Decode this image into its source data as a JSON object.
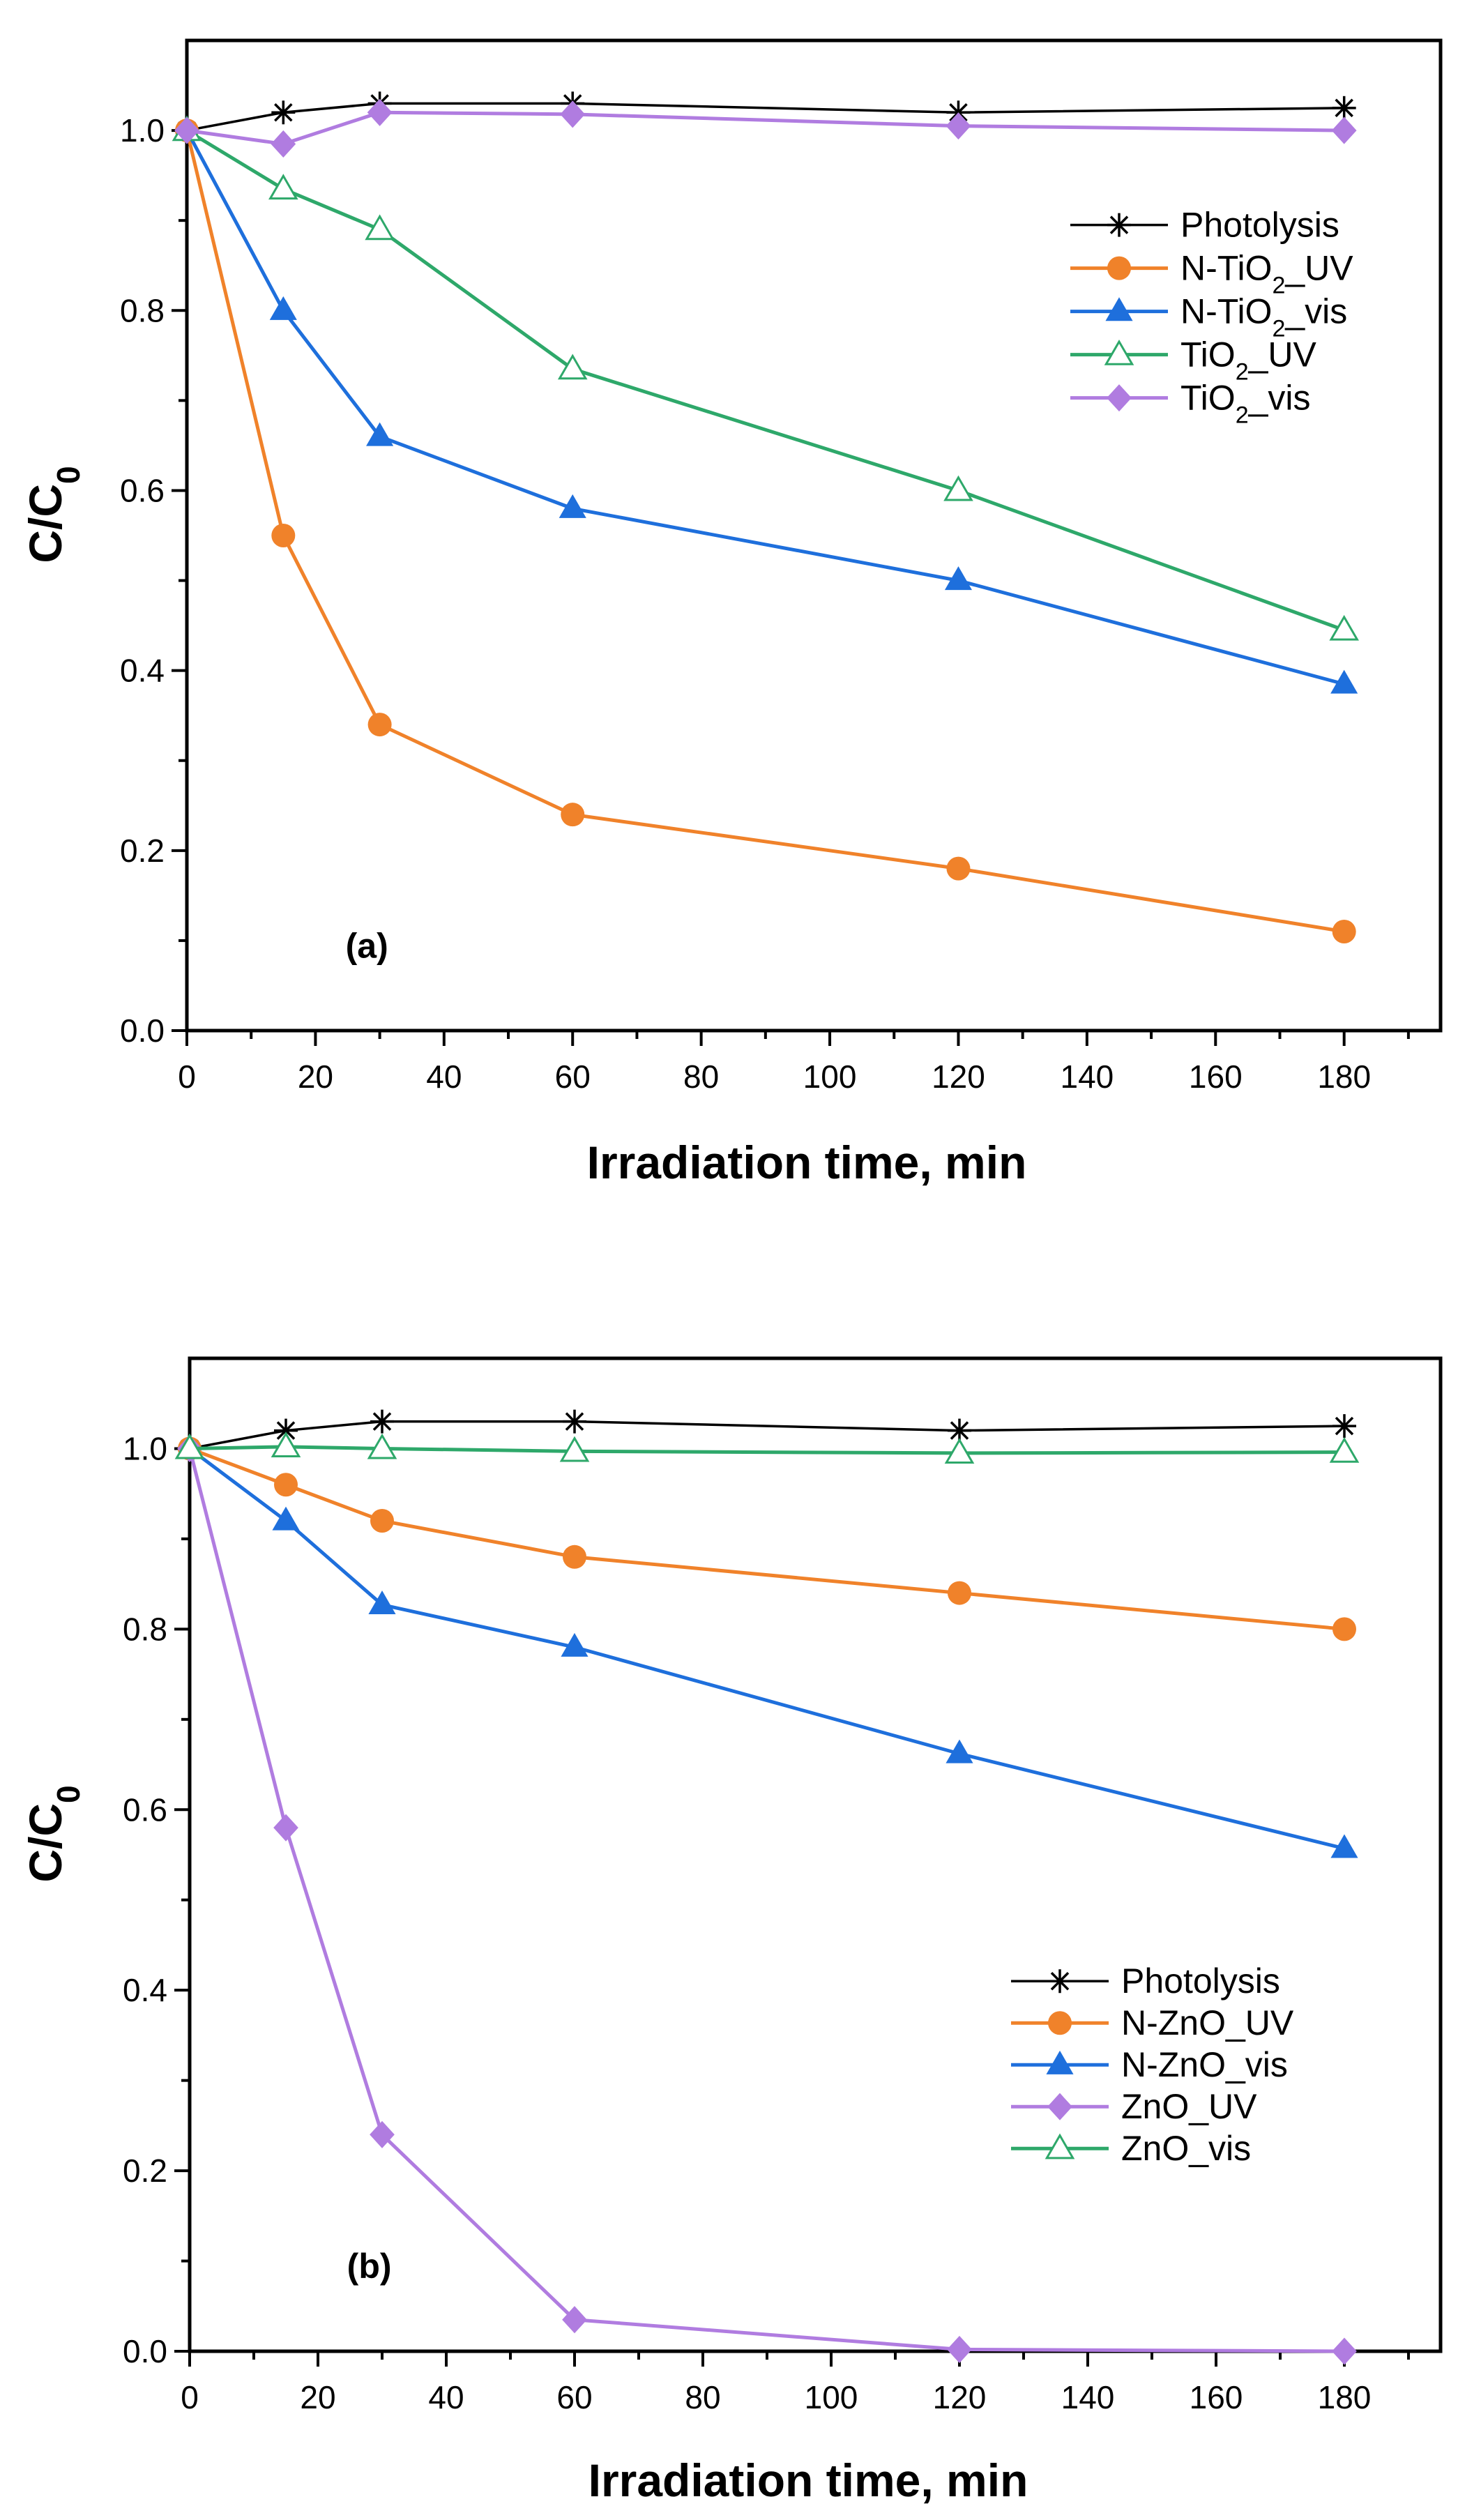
{
  "chart_data": [
    {
      "type": "line",
      "panel_label": "(a)",
      "xlabel": "Irradiation time, min",
      "ylabel": "C/C0",
      "xlim": [
        0,
        195
      ],
      "ylim": [
        0,
        1.1
      ],
      "xticks": [
        0,
        20,
        40,
        60,
        80,
        100,
        120,
        140,
        160,
        180
      ],
      "yticks": [
        0.0,
        0.2,
        0.4,
        0.6,
        0.8,
        1.0
      ],
      "legend_position": "top-right",
      "x": [
        0,
        15,
        30,
        60,
        120,
        180
      ],
      "series": [
        {
          "name": "Photolysis",
          "color": "#000000",
          "marker": "star",
          "values": [
            1.0,
            1.02,
            1.03,
            1.03,
            1.02,
            1.025
          ]
        },
        {
          "name": "N-TiO2_UV",
          "color": "#F0822A",
          "marker": "circle",
          "values": [
            1.0,
            0.55,
            0.34,
            0.24,
            0.18,
            0.11
          ]
        },
        {
          "name": "N-TiO2_vis",
          "color": "#1E6FDC",
          "marker": "triangle",
          "values": [
            1.0,
            0.8,
            0.66,
            0.58,
            0.5,
            0.385
          ]
        },
        {
          "name": "TiO2_UV",
          "color": "#2EA86A",
          "marker": "triangle-open",
          "values": [
            1.0,
            0.935,
            0.89,
            0.735,
            0.6,
            0.445
          ]
        },
        {
          "name": "TiO2_vis",
          "color": "#B07CE0",
          "marker": "diamond",
          "values": [
            1.0,
            0.985,
            1.02,
            1.018,
            1.005,
            1.0
          ]
        }
      ]
    },
    {
      "type": "line",
      "panel_label": "(b)",
      "xlabel": "Irradiation time, min",
      "ylabel": "C/C0",
      "xlim": [
        0,
        195
      ],
      "ylim": [
        0,
        1.1
      ],
      "xticks": [
        0,
        20,
        40,
        60,
        80,
        100,
        120,
        140,
        160,
        180
      ],
      "yticks": [
        0.0,
        0.2,
        0.4,
        0.6,
        0.8,
        1.0
      ],
      "legend_position": "bottom-right",
      "x": [
        0,
        15,
        30,
        60,
        120,
        180
      ],
      "series": [
        {
          "name": "Photolysis",
          "color": "#000000",
          "marker": "star",
          "values": [
            1.0,
            1.02,
            1.03,
            1.03,
            1.02,
            1.025
          ]
        },
        {
          "name": "N-ZnO_UV",
          "color": "#F0822A",
          "marker": "circle",
          "values": [
            1.0,
            0.96,
            0.92,
            0.88,
            0.84,
            0.8
          ]
        },
        {
          "name": "N-ZnO_vis",
          "color": "#1E6FDC",
          "marker": "triangle",
          "values": [
            1.0,
            0.92,
            0.827,
            0.78,
            0.662,
            0.557
          ]
        },
        {
          "name": "ZnO_UV",
          "color": "#B07CE0",
          "marker": "diamond",
          "values": [
            1.0,
            0.58,
            0.24,
            0.035,
            0.002,
            0.0
          ]
        },
        {
          "name": "ZnO_vis",
          "color": "#2EA86A",
          "marker": "triangle-open",
          "values": [
            1.0,
            1.002,
            1.0,
            0.997,
            0.995,
            0.996
          ]
        }
      ]
    }
  ]
}
